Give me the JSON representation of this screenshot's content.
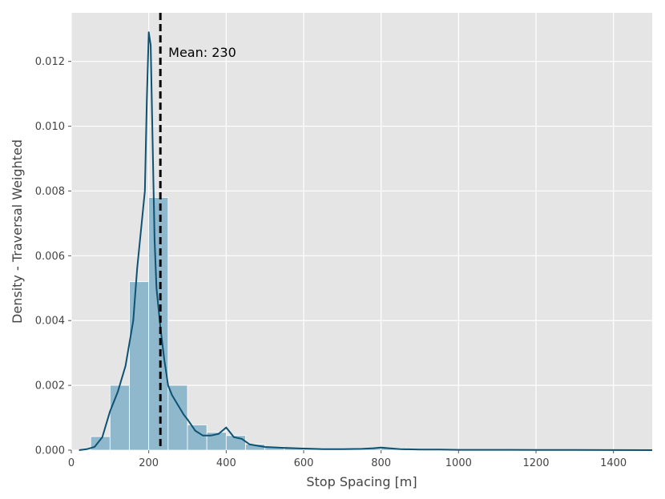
{
  "chart_data": {
    "type": "bar",
    "xlabel": "Stop Spacing [m]",
    "ylabel": "Density - Traversal Weighted",
    "xlim": [
      0,
      1500
    ],
    "ylim": [
      0,
      0.0135
    ],
    "xticks": [
      0,
      200,
      400,
      600,
      800,
      1000,
      1200,
      1400
    ],
    "yticks": [
      0.0,
      0.002,
      0.004,
      0.006,
      0.008,
      0.01,
      0.012
    ],
    "ytick_labels": [
      "0.000",
      "0.002",
      "0.004",
      "0.006",
      "0.008",
      "0.010",
      "0.012"
    ],
    "grid": true,
    "histogram": {
      "bin_width": 50,
      "bins": [
        {
          "x0": 50,
          "x1": 100,
          "density": 0.00042
        },
        {
          "x0": 100,
          "x1": 150,
          "density": 0.002
        },
        {
          "x0": 150,
          "x1": 200,
          "density": 0.0052
        },
        {
          "x0": 200,
          "x1": 250,
          "density": 0.0078
        },
        {
          "x0": 250,
          "x1": 300,
          "density": 0.002
        },
        {
          "x0": 300,
          "x1": 350,
          "density": 0.00078
        },
        {
          "x0": 350,
          "x1": 400,
          "density": 0.00055
        },
        {
          "x0": 400,
          "x1": 450,
          "density": 0.00045
        },
        {
          "x0": 450,
          "x1": 500,
          "density": 0.00018
        },
        {
          "x0": 500,
          "x1": 550,
          "density": 0.0001
        },
        {
          "x0": 550,
          "x1": 600,
          "density": 7e-05
        },
        {
          "x0": 600,
          "x1": 650,
          "density": 5e-05
        },
        {
          "x0": 650,
          "x1": 700,
          "density": 4e-05
        },
        {
          "x0": 700,
          "x1": 750,
          "density": 4e-05
        },
        {
          "x0": 750,
          "x1": 800,
          "density": 5e-05
        },
        {
          "x0": 800,
          "x1": 850,
          "density": 6e-05
        },
        {
          "x0": 850,
          "x1": 900,
          "density": 3e-05
        },
        {
          "x0": 900,
          "x1": 950,
          "density": 2e-05
        },
        {
          "x0": 950,
          "x1": 1000,
          "density": 2e-05
        },
        {
          "x0": 1000,
          "x1": 1050,
          "density": 1e-05
        },
        {
          "x0": 1050,
          "x1": 1100,
          "density": 1e-05
        },
        {
          "x0": 1100,
          "x1": 1150,
          "density": 1e-05
        },
        {
          "x0": 1150,
          "x1": 1200,
          "density": 1e-05
        },
        {
          "x0": 1200,
          "x1": 1250,
          "density": 1e-05
        },
        {
          "x0": 1250,
          "x1": 1300,
          "density": 1e-05
        },
        {
          "x0": 1300,
          "x1": 1350,
          "density": 1e-05
        },
        {
          "x0": 1350,
          "x1": 1400,
          "density": 1e-05
        },
        {
          "x0": 1400,
          "x1": 1450,
          "density": 1e-05
        },
        {
          "x0": 1450,
          "x1": 1500,
          "density": 1e-05
        }
      ]
    },
    "kde": {
      "x": [
        20,
        40,
        60,
        80,
        100,
        120,
        140,
        160,
        170,
        180,
        190,
        195,
        200,
        205,
        210,
        215,
        220,
        230,
        240,
        250,
        260,
        270,
        280,
        290,
        300,
        320,
        340,
        360,
        380,
        390,
        400,
        410,
        420,
        440,
        460,
        500,
        550,
        600,
        650,
        700,
        750,
        780,
        800,
        820,
        850,
        900,
        950,
        1000,
        1100,
        1200,
        1300,
        1400,
        1500
      ],
      "y": [
        0.0,
        3e-05,
        0.0001,
        0.0004,
        0.0012,
        0.0018,
        0.0026,
        0.004,
        0.0056,
        0.0068,
        0.008,
        0.0108,
        0.0129,
        0.0125,
        0.0095,
        0.0065,
        0.005,
        0.0038,
        0.0028,
        0.002,
        0.0017,
        0.0015,
        0.0013,
        0.0011,
        0.00095,
        0.0006,
        0.00045,
        0.00045,
        0.0005,
        0.0006,
        0.0007,
        0.00055,
        0.0004,
        0.00035,
        0.00018,
        0.0001,
        7e-05,
        5e-05,
        3e-05,
        3e-05,
        4e-05,
        6e-05,
        8e-05,
        6e-05,
        3e-05,
        2e-05,
        2e-05,
        1e-05,
        1e-05,
        5e-06,
        5e-06,
        3e-06,
        0.0
      ]
    },
    "mean_line": {
      "x": 230,
      "label": "Mean: 230"
    },
    "colors": {
      "background": "#e5e5e5",
      "grid": "#ffffff",
      "bars": "#8fb8cc",
      "kde": "#0e5273",
      "mean_line": "#000000"
    }
  }
}
